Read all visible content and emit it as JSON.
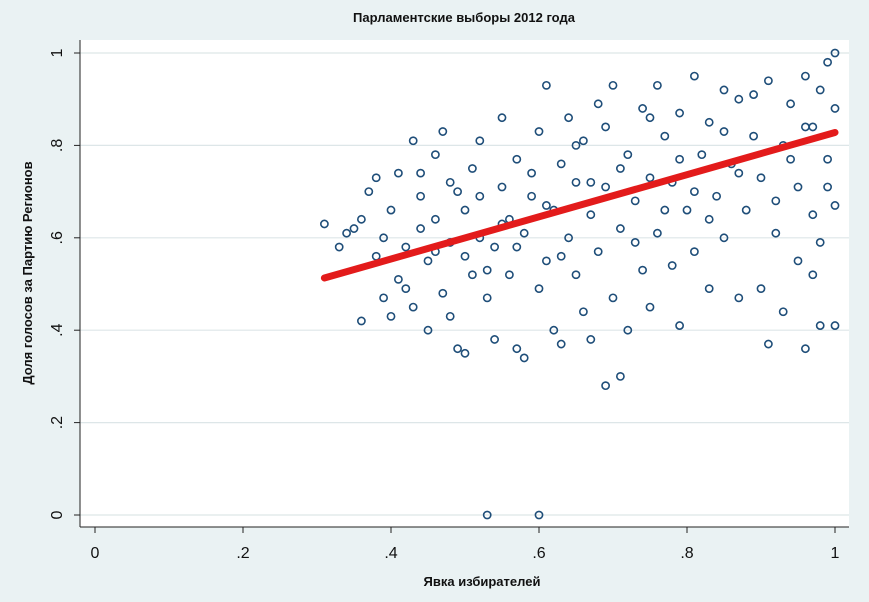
{
  "chart_data": {
    "type": "scatter",
    "title": "Парламентские выборы 2012 года",
    "xlabel": "Явка избирателей",
    "ylabel": "Доля голосов за Партию Регионов",
    "xlim": [
      0,
      1
    ],
    "ylim": [
      0,
      1
    ],
    "x_ticks": [
      0,
      0.2,
      0.4,
      0.6,
      0.8,
      1
    ],
    "x_tick_labels": [
      "0",
      ".2",
      ".4",
      ".6",
      ".8",
      "1"
    ],
    "y_ticks": [
      0,
      0.2,
      0.4,
      0.6,
      0.8,
      1
    ],
    "y_tick_labels": [
      "0",
      ".2",
      ".4",
      ".6",
      ".8",
      "1"
    ],
    "grid": "horizontal",
    "colors": {
      "points": "#1f4e79",
      "fit_line": "#e31b1b",
      "background": "#eaf2f3",
      "plot_area": "#ffffff"
    },
    "series": [
      {
        "type": "scatter",
        "points": [
          [
            0.31,
            0.63
          ],
          [
            0.33,
            0.58
          ],
          [
            0.34,
            0.61
          ],
          [
            0.35,
            0.62
          ],
          [
            0.36,
            0.42
          ],
          [
            0.36,
            0.64
          ],
          [
            0.37,
            0.7
          ],
          [
            0.38,
            0.56
          ],
          [
            0.38,
            0.73
          ],
          [
            0.39,
            0.6
          ],
          [
            0.39,
            0.47
          ],
          [
            0.4,
            0.43
          ],
          [
            0.4,
            0.66
          ],
          [
            0.41,
            0.51
          ],
          [
            0.41,
            0.74
          ],
          [
            0.42,
            0.49
          ],
          [
            0.42,
            0.58
          ],
          [
            0.43,
            0.81
          ],
          [
            0.43,
            0.45
          ],
          [
            0.44,
            0.62
          ],
          [
            0.44,
            0.69
          ],
          [
            0.45,
            0.4
          ],
          [
            0.45,
            0.55
          ],
          [
            0.46,
            0.78
          ],
          [
            0.46,
            0.64
          ],
          [
            0.47,
            0.48
          ],
          [
            0.47,
            0.83
          ],
          [
            0.48,
            0.59
          ],
          [
            0.48,
            0.43
          ],
          [
            0.49,
            0.7
          ],
          [
            0.49,
            0.36
          ],
          [
            0.5,
            0.66
          ],
          [
            0.5,
            0.35
          ],
          [
            0.51,
            0.75
          ],
          [
            0.51,
            0.52
          ],
          [
            0.52,
            0.6
          ],
          [
            0.52,
            0.81
          ],
          [
            0.53,
            0.0
          ],
          [
            0.53,
            0.47
          ],
          [
            0.54,
            0.58
          ],
          [
            0.54,
            0.38
          ],
          [
            0.55,
            0.71
          ],
          [
            0.55,
            0.86
          ],
          [
            0.56,
            0.52
          ],
          [
            0.56,
            0.64
          ],
          [
            0.57,
            0.36
          ],
          [
            0.57,
            0.77
          ],
          [
            0.58,
            0.61
          ],
          [
            0.58,
            0.34
          ],
          [
            0.59,
            0.69
          ],
          [
            0.6,
            0.0
          ],
          [
            0.6,
            0.49
          ],
          [
            0.6,
            0.83
          ],
          [
            0.61,
            0.93
          ],
          [
            0.61,
            0.55
          ],
          [
            0.62,
            0.66
          ],
          [
            0.62,
            0.4
          ],
          [
            0.63,
            0.76
          ],
          [
            0.63,
            0.37
          ],
          [
            0.64,
            0.6
          ],
          [
            0.64,
            0.86
          ],
          [
            0.65,
            0.52
          ],
          [
            0.65,
            0.72
          ],
          [
            0.66,
            0.44
          ],
          [
            0.66,
            0.81
          ],
          [
            0.67,
            0.65
          ],
          [
            0.67,
            0.38
          ],
          [
            0.68,
            0.57
          ],
          [
            0.68,
            0.89
          ],
          [
            0.69,
            0.28
          ],
          [
            0.69,
            0.71
          ],
          [
            0.7,
            0.47
          ],
          [
            0.7,
            0.93
          ],
          [
            0.71,
            0.3
          ],
          [
            0.71,
            0.62
          ],
          [
            0.72,
            0.78
          ],
          [
            0.72,
            0.4
          ],
          [
            0.73,
            0.68
          ],
          [
            0.74,
            0.88
          ],
          [
            0.74,
            0.53
          ],
          [
            0.75,
            0.73
          ],
          [
            0.75,
            0.45
          ],
          [
            0.76,
            0.93
          ],
          [
            0.76,
            0.61
          ],
          [
            0.77,
            0.82
          ],
          [
            0.78,
            0.54
          ],
          [
            0.78,
            0.72
          ],
          [
            0.79,
            0.41
          ],
          [
            0.79,
            0.87
          ],
          [
            0.8,
            0.66
          ],
          [
            0.81,
            0.95
          ],
          [
            0.81,
            0.57
          ],
          [
            0.82,
            0.78
          ],
          [
            0.83,
            0.49
          ],
          [
            0.83,
            0.85
          ],
          [
            0.84,
            0.69
          ],
          [
            0.85,
            0.92
          ],
          [
            0.85,
            0.6
          ],
          [
            0.86,
            0.76
          ],
          [
            0.87,
            0.47
          ],
          [
            0.87,
            0.9
          ],
          [
            0.88,
            0.66
          ],
          [
            0.89,
            0.82
          ],
          [
            0.9,
            0.49
          ],
          [
            0.9,
            0.73
          ],
          [
            0.91,
            0.37
          ],
          [
            0.91,
            0.94
          ],
          [
            0.92,
            0.61
          ],
          [
            0.93,
            0.8
          ],
          [
            0.93,
            0.44
          ],
          [
            0.94,
            0.89
          ],
          [
            0.95,
            0.55
          ],
          [
            0.95,
            0.71
          ],
          [
            0.96,
            0.36
          ],
          [
            0.96,
            0.95
          ],
          [
            0.97,
            0.65
          ],
          [
            0.97,
            0.84
          ],
          [
            0.98,
            0.41
          ],
          [
            0.98,
            0.59
          ],
          [
            0.99,
            0.98
          ],
          [
            0.99,
            0.77
          ],
          [
            1.0,
            0.41
          ],
          [
            1.0,
            0.67
          ],
          [
            1.0,
            0.88
          ],
          [
            1.0,
            1.0
          ],
          [
            0.44,
            0.74
          ],
          [
            0.46,
            0.57
          ],
          [
            0.48,
            0.72
          ],
          [
            0.5,
            0.56
          ],
          [
            0.52,
            0.69
          ],
          [
            0.53,
            0.53
          ],
          [
            0.55,
            0.63
          ],
          [
            0.57,
            0.58
          ],
          [
            0.59,
            0.74
          ],
          [
            0.61,
            0.67
          ],
          [
            0.63,
            0.56
          ],
          [
            0.65,
            0.8
          ],
          [
            0.67,
            0.72
          ],
          [
            0.69,
            0.84
          ],
          [
            0.71,
            0.75
          ],
          [
            0.73,
            0.59
          ],
          [
            0.75,
            0.86
          ],
          [
            0.77,
            0.66
          ],
          [
            0.79,
            0.77
          ],
          [
            0.81,
            0.7
          ],
          [
            0.83,
            0.64
          ],
          [
            0.85,
            0.83
          ],
          [
            0.87,
            0.74
          ],
          [
            0.89,
            0.91
          ],
          [
            0.92,
            0.68
          ],
          [
            0.94,
            0.77
          ],
          [
            0.96,
            0.84
          ],
          [
            0.98,
            0.92
          ],
          [
            0.99,
            0.71
          ],
          [
            0.97,
            0.52
          ]
        ]
      },
      {
        "type": "line",
        "fit": "linear",
        "x": [
          0.31,
          1.0
        ],
        "y": [
          0.513,
          0.828
        ]
      }
    ]
  }
}
